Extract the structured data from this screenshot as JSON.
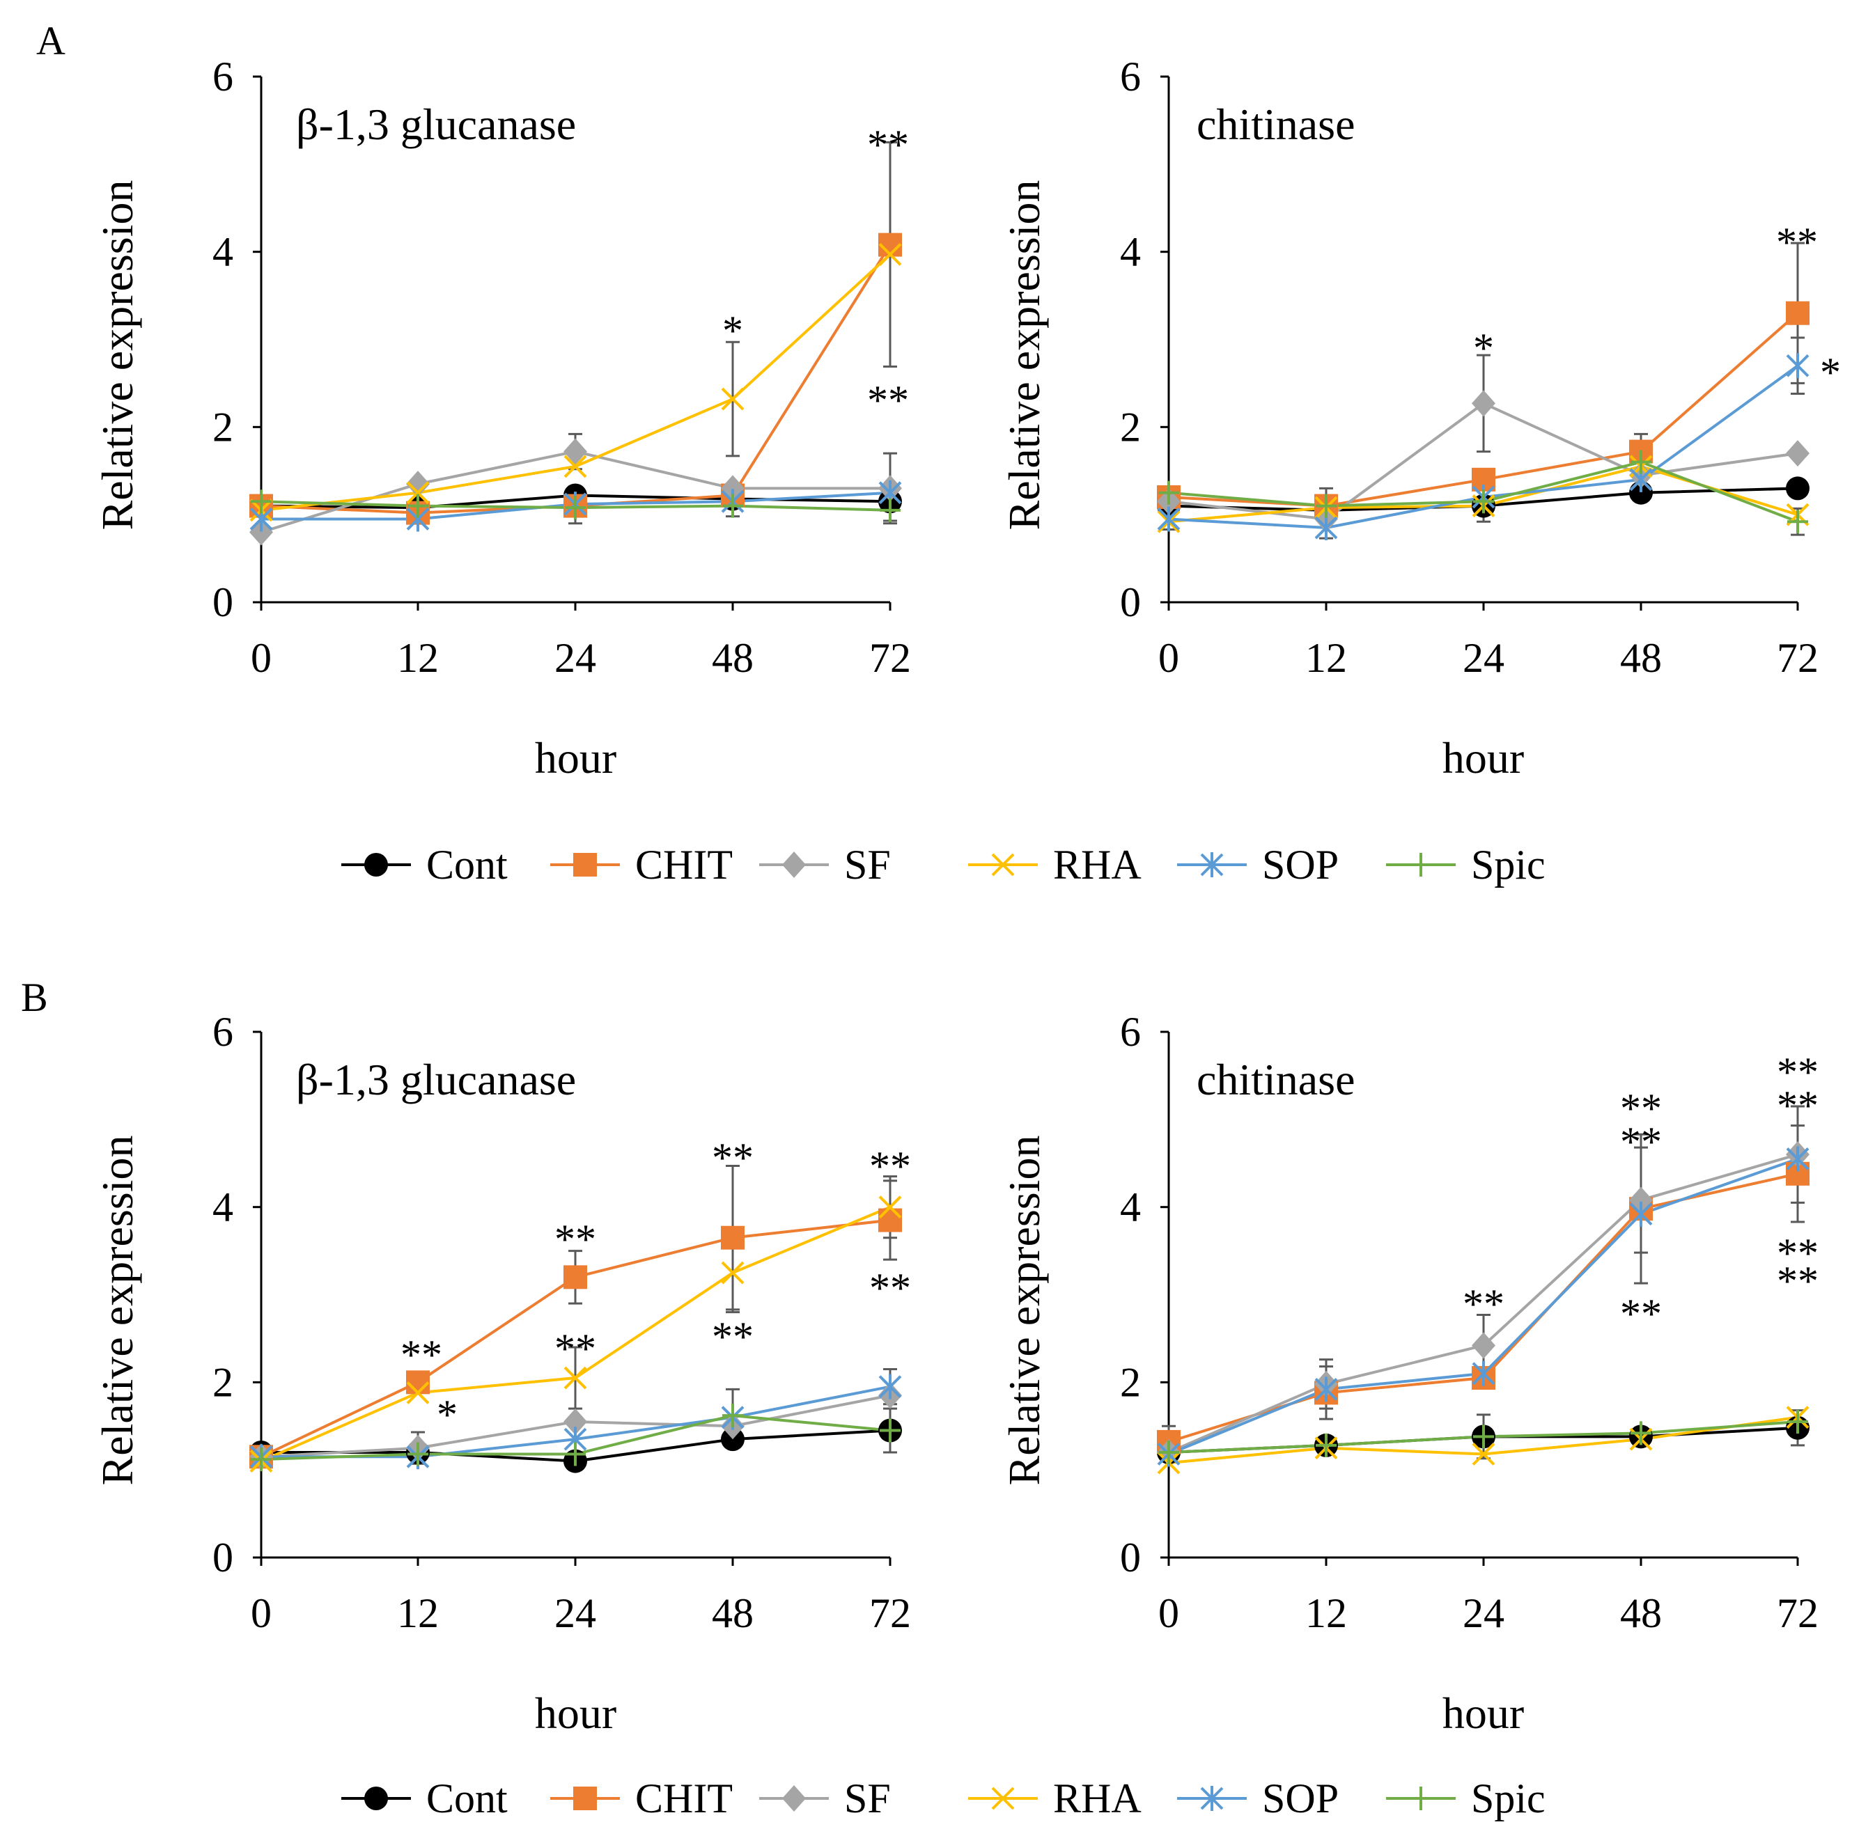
{
  "figure_labels": [
    "A",
    "B"
  ],
  "legend": {
    "entries": [
      {
        "name": "Cont",
        "color": "#000000",
        "marker": "circle"
      },
      {
        "name": "CHIT",
        "color": "#ED7D31",
        "marker": "square"
      },
      {
        "name": "SF",
        "color": "#A5A5A5",
        "marker": "diamond"
      },
      {
        "name": "RHA",
        "color": "#FFC000",
        "marker": "x"
      },
      {
        "name": "SOP",
        "color": "#5B9BD5",
        "marker": "asterisk"
      },
      {
        "name": "Spic",
        "color": "#70AD47",
        "marker": "plus"
      }
    ]
  },
  "chart_data": [
    {
      "type": "line",
      "panel": "A",
      "title": "β-1,3 glucanase",
      "xlabel": "hour",
      "ylabel": "Relative expression",
      "categories": [
        "0",
        "12",
        "24",
        "48",
        "72"
      ],
      "ylim": [
        0,
        6
      ],
      "yticks": [
        0,
        2,
        4,
        6
      ],
      "series": [
        {
          "name": "Cont",
          "values": [
            1.1,
            1.08,
            1.22,
            1.18,
            1.15
          ]
        },
        {
          "name": "CHIT",
          "values": [
            1.1,
            1.02,
            1.1,
            1.22,
            4.08
          ]
        },
        {
          "name": "SF",
          "values": [
            0.8,
            1.35,
            1.72,
            1.3,
            1.3
          ],
          "errors": [
            0,
            0,
            0.2,
            0,
            0.4
          ]
        },
        {
          "name": "RHA",
          "values": [
            1.05,
            1.25,
            1.55,
            2.32,
            3.97
          ],
          "errors": [
            0,
            0,
            0,
            0.65,
            1.28
          ]
        },
        {
          "name": "SOP",
          "values": [
            0.95,
            0.95,
            1.12,
            1.15,
            1.25
          ]
        },
        {
          "name": "Spic",
          "values": [
            1.15,
            1.1,
            1.08,
            1.1,
            1.05
          ],
          "errors": [
            0,
            0,
            0.18,
            0.12,
            0.12
          ]
        }
      ],
      "annotations": [
        "*",
        "**",
        "**"
      ]
    },
    {
      "type": "line",
      "panel": "A",
      "title": "chitinase",
      "xlabel": "hour",
      "ylabel": "Relative expression",
      "categories": [
        "0",
        "12",
        "24",
        "48",
        "72"
      ],
      "ylim": [
        0,
        6
      ],
      "yticks": [
        0,
        2,
        4,
        6
      ],
      "series": [
        {
          "name": "Cont",
          "values": [
            1.1,
            1.05,
            1.1,
            1.25,
            1.3
          ],
          "errors": [
            0,
            0,
            0.18,
            0,
            0
          ]
        },
        {
          "name": "CHIT",
          "values": [
            1.2,
            1.1,
            1.4,
            1.72,
            3.3
          ],
          "errors": [
            0,
            0,
            0,
            0.2,
            0.8
          ]
        },
        {
          "name": "SF",
          "values": [
            1.15,
            0.95,
            2.27,
            1.45,
            1.7
          ],
          "errors": [
            0,
            0,
            0.55,
            0,
            0
          ]
        },
        {
          "name": "RHA",
          "values": [
            0.92,
            1.08,
            1.1,
            1.55,
            1.0
          ]
        },
        {
          "name": "SOP",
          "values": [
            0.95,
            0.85,
            1.2,
            1.4,
            2.7
          ],
          "errors": [
            0.12,
            0.12,
            0,
            0,
            0.32
          ]
        },
        {
          "name": "Spic",
          "values": [
            1.25,
            1.1,
            1.15,
            1.6,
            0.92
          ],
          "errors": [
            0,
            0.2,
            0,
            0,
            0.15
          ]
        }
      ],
      "annotations": [
        "*",
        "**",
        "*"
      ]
    },
    {
      "type": "line",
      "panel": "B",
      "title": "β-1,3 glucanase",
      "xlabel": "hour",
      "ylabel": "Relative expression",
      "categories": [
        "0",
        "12",
        "24",
        "48",
        "72"
      ],
      "ylim": [
        0,
        6
      ],
      "yticks": [
        0,
        2,
        4,
        6
      ],
      "series": [
        {
          "name": "Cont",
          "values": [
            1.2,
            1.2,
            1.1,
            1.35,
            1.45
          ]
        },
        {
          "name": "CHIT",
          "values": [
            1.15,
            2.0,
            3.2,
            3.65,
            3.85
          ],
          "errors": [
            0,
            0,
            0.3,
            0.82,
            0.45
          ]
        },
        {
          "name": "SF",
          "values": [
            1.15,
            1.25,
            1.55,
            1.5,
            1.85
          ],
          "errors": [
            0,
            0.18,
            0,
            0,
            0
          ]
        },
        {
          "name": "RHA",
          "values": [
            1.1,
            1.88,
            2.05,
            3.25,
            4.0
          ],
          "errors": [
            0,
            0,
            0.35,
            0.45,
            0.35
          ]
        },
        {
          "name": "SOP",
          "values": [
            1.15,
            1.15,
            1.35,
            1.6,
            1.95
          ],
          "errors": [
            0,
            0,
            0,
            0,
            0.2
          ]
        },
        {
          "name": "Spic",
          "values": [
            1.12,
            1.18,
            1.18,
            1.62,
            1.45
          ],
          "errors": [
            0,
            0,
            0,
            0.3,
            0.25
          ]
        }
      ],
      "annotations": [
        "**",
        "*",
        "**",
        "**",
        "**",
        "**",
        "**",
        "**"
      ]
    },
    {
      "type": "line",
      "panel": "B",
      "title": "chitinase",
      "xlabel": "hour",
      "ylabel": "Relative expression",
      "categories": [
        "0",
        "12",
        "24",
        "48",
        "72"
      ],
      "ylim": [
        0,
        6
      ],
      "yticks": [
        0,
        2,
        4,
        6
      ],
      "series": [
        {
          "name": "Cont",
          "values": [
            1.2,
            1.28,
            1.38,
            1.38,
            1.48
          ],
          "errors": [
            0,
            0,
            0.25,
            0.1,
            0.2
          ]
        },
        {
          "name": "CHIT",
          "values": [
            1.32,
            1.88,
            2.05,
            3.98,
            4.38
          ],
          "errors": [
            0.18,
            0.3,
            0,
            0.85,
            0.55
          ]
        },
        {
          "name": "SF",
          "values": [
            1.2,
            1.98,
            2.42,
            4.08,
            4.6
          ],
          "errors": [
            0,
            0.28,
            0.35,
            0.6,
            0.55
          ]
        },
        {
          "name": "RHA",
          "values": [
            1.08,
            1.25,
            1.18,
            1.35,
            1.6
          ]
        },
        {
          "name": "SOP",
          "values": [
            1.18,
            1.92,
            2.1,
            3.92,
            4.55
          ]
        },
        {
          "name": "Spic",
          "values": [
            1.2,
            1.28,
            1.38,
            1.42,
            1.55
          ]
        }
      ],
      "annotations": [
        "**",
        "**",
        "**",
        "**",
        "**",
        "**",
        "**",
        "**"
      ]
    }
  ]
}
